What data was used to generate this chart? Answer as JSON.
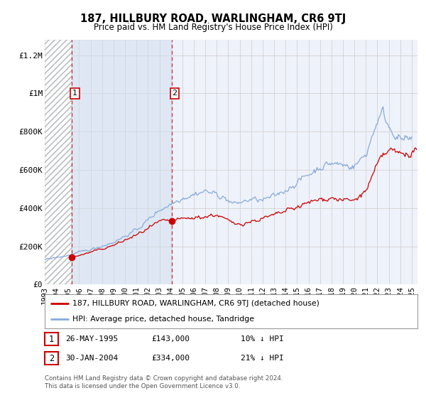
{
  "title": "187, HILLBURY ROAD, WARLINGHAM, CR6 9TJ",
  "subtitle": "Price paid vs. HM Land Registry's House Price Index (HPI)",
  "ylabel_ticks": [
    "£0",
    "£200K",
    "£400K",
    "£600K",
    "£800K",
    "£1M",
    "£1.2M"
  ],
  "ytick_values": [
    0,
    200000,
    400000,
    600000,
    800000,
    1000000,
    1200000
  ],
  "ylim": [
    0,
    1280000
  ],
  "xlim_start": 1993.0,
  "xlim_end": 2025.5,
  "sale1_x": 1995.38,
  "sale1_y": 143000,
  "sale1_label": "1",
  "sale1_date": "26-MAY-1995",
  "sale1_price": "£143,000",
  "sale1_hpi": "10% ↓ HPI",
  "sale2_x": 2004.08,
  "sale2_y": 334000,
  "sale2_label": "2",
  "sale2_date": "30-JAN-2004",
  "sale2_price": "£334,000",
  "sale2_hpi": "21% ↓ HPI",
  "red_line_color": "#cc0000",
  "blue_line_color": "#88aadd",
  "background_color": "#ffffff",
  "plot_bg_color": "#eef2fa",
  "legend_entry1": "187, HILLBURY ROAD, WARLINGHAM, CR6 9TJ (detached house)",
  "legend_entry2": "HPI: Average price, detached house, Tandridge",
  "footer": "Contains HM Land Registry data © Crown copyright and database right 2024.\nThis data is licensed under the Open Government Licence v3.0.",
  "grid_color": "#cccccc",
  "xtick_years": [
    1993,
    1994,
    1995,
    1996,
    1997,
    1998,
    1999,
    2000,
    2001,
    2002,
    2003,
    2004,
    2005,
    2006,
    2007,
    2008,
    2009,
    2010,
    2011,
    2012,
    2013,
    2014,
    2015,
    2016,
    2017,
    2018,
    2019,
    2020,
    2021,
    2022,
    2023,
    2024,
    2025
  ]
}
